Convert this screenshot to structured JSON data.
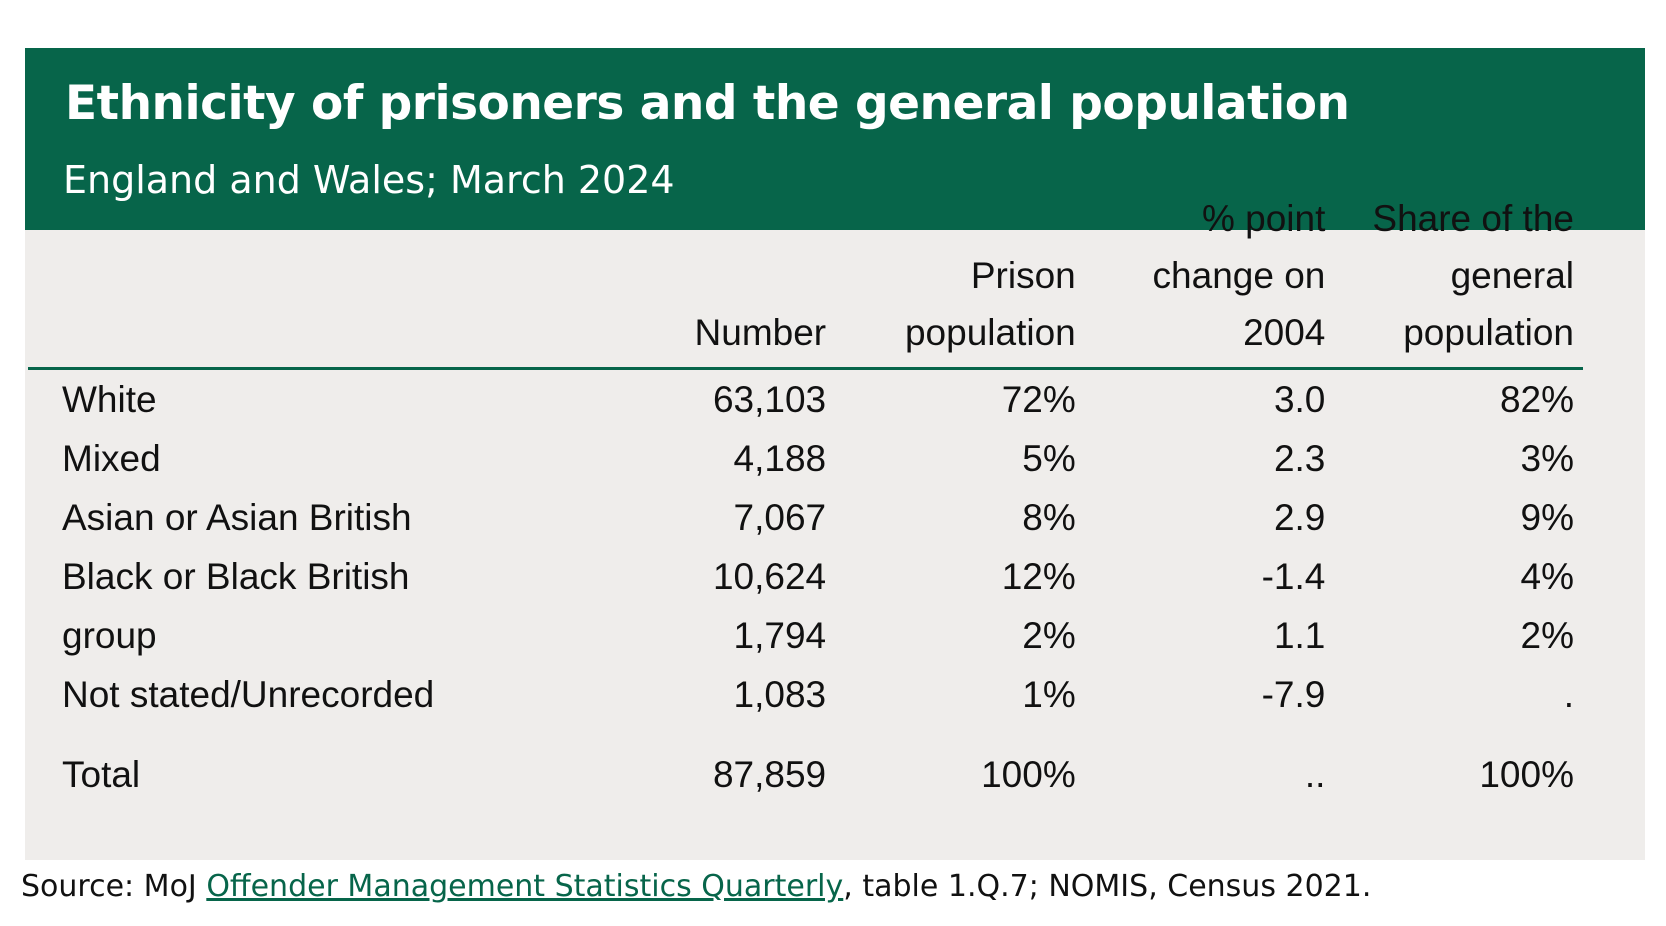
{
  "chart_data": {
    "type": "table",
    "title": "Ethnicity of prisoners and the general population",
    "subtitle": "England and Wales; March 2024",
    "columns": [
      "",
      "Number",
      "Prison population",
      "% point change on 2004",
      "Share of the general population"
    ],
    "rows": [
      [
        "White",
        "63,103",
        "72%",
        "3.0",
        "82%"
      ],
      [
        "Mixed",
        "4,188",
        "5%",
        "2.3",
        "3%"
      ],
      [
        "Asian or Asian British",
        "7,067",
        "8%",
        "2.9",
        "9%"
      ],
      [
        "Black or Black British",
        "10,624",
        "12%",
        "-1.4",
        "4%"
      ],
      [
        "group",
        "1,794",
        "2%",
        "1.1",
        "2%"
      ],
      [
        "Not stated/Unrecorded",
        "1,083",
        "1%",
        "-7.9",
        "."
      ]
    ],
    "total": [
      "Total",
      "87,859",
      "100%",
      "..",
      "100%"
    ]
  },
  "source": {
    "prefix": "Source:  MoJ ",
    "link_text": "Offender Management Statistics Quarterly",
    "suffix": ", table 1.Q.7; NOMIS, Census 2021."
  },
  "colors": {
    "banner": "#07654a",
    "panel": "#efedeb",
    "link": "#07654a"
  }
}
